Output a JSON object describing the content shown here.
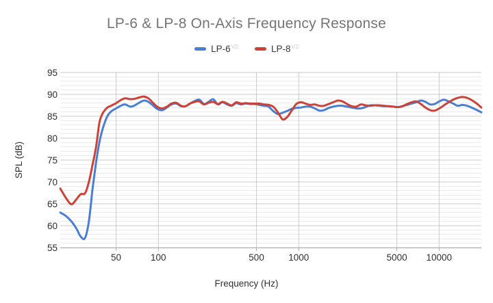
{
  "chart_data": {
    "type": "line",
    "title": "LP-6 & LP-8 On-Axis Frequency Response",
    "xlabel": "Frequency (Hz)",
    "ylabel": "SPL (dB)",
    "x_scale": "log",
    "xlim": [
      20,
      20000
    ],
    "ylim": [
      55,
      95
    ],
    "y_major_ticks": [
      55,
      60,
      65,
      70,
      75,
      80,
      85,
      90,
      95
    ],
    "y_minor_step": 1,
    "x_gridlines": [
      50,
      100,
      500,
      1000,
      5000,
      10000
    ],
    "x_tick_labels": [
      "50",
      "100",
      "500",
      "1000",
      "5000",
      "10000"
    ],
    "grid": "major-vertical, major+minor-horizontal",
    "legend_position": "top-center",
    "colors": {
      "title_text": "#757575",
      "axis_text": "#2e2e2e",
      "major_grid": "#c9c9c9",
      "minor_grid": "#e9e9e9",
      "axis_line": "#b0b0b0",
      "superscript_text": "#c9cdd8"
    },
    "frequencies": [
      20,
      22,
      24,
      26,
      28,
      30,
      32,
      34,
      36,
      38,
      40,
      43,
      46,
      50,
      54,
      58,
      63,
      68,
      73,
      79,
      85,
      92,
      99,
      107,
      115,
      124,
      134,
      145,
      156,
      168,
      182,
      196,
      211,
      228,
      246,
      265,
      286,
      309,
      333,
      359,
      387,
      418,
      451,
      486,
      524,
      565,
      610,
      658,
      710,
      766,
      826,
      891,
      961,
      1036,
      1118,
      1206,
      1301,
      1403,
      1513,
      1632,
      1760,
      1899,
      2048,
      2209,
      2383,
      2570,
      2772,
      2990,
      3225,
      3479,
      3752,
      4047,
      4365,
      4708,
      5078,
      5477,
      5907,
      6372,
      6873,
      7413,
      7996,
      8625,
      9303,
      10034,
      10823,
      11674,
      12592,
      13582,
      14650,
      15801,
      17043,
      18383,
      20000
    ],
    "series": [
      {
        "name": "LP-6",
        "superscript": "V2",
        "color": "#4a7ed3",
        "values": [
          63.0,
          62.2,
          61.0,
          59.4,
          57.5,
          57.2,
          61.0,
          68.5,
          74.5,
          79.0,
          82.0,
          84.8,
          86.1,
          86.8,
          87.4,
          87.7,
          87.2,
          87.5,
          88.1,
          88.6,
          88.3,
          87.4,
          86.6,
          86.4,
          87.0,
          87.7,
          87.9,
          87.3,
          87.3,
          87.9,
          88.5,
          88.8,
          87.8,
          88.3,
          88.9,
          87.7,
          88.2,
          87.7,
          87.4,
          88.0,
          87.7,
          87.9,
          87.8,
          87.8,
          87.6,
          87.4,
          87.2,
          86.2,
          85.5,
          85.8,
          86.2,
          86.7,
          86.9,
          87.0,
          87.2,
          87.2,
          86.8,
          86.3,
          86.4,
          86.9,
          87.2,
          87.4,
          87.4,
          87.2,
          87.0,
          86.8,
          86.8,
          87.1,
          87.5,
          87.5,
          87.4,
          87.3,
          87.3,
          87.2,
          87.1,
          87.3,
          87.6,
          87.9,
          88.2,
          88.6,
          88.3,
          87.7,
          87.8,
          88.4,
          88.8,
          88.4,
          87.9,
          87.4,
          87.6,
          87.4,
          87.0,
          86.5,
          85.9
        ]
      },
      {
        "name": "LP-8",
        "superscript": "V2",
        "color": "#cc4237",
        "values": [
          68.5,
          66.3,
          64.9,
          66.0,
          67.2,
          67.4,
          70.0,
          74.0,
          78.0,
          83.5,
          85.6,
          86.9,
          87.4,
          88.0,
          88.7,
          89.1,
          88.9,
          89.0,
          89.3,
          89.5,
          89.1,
          88.0,
          87.1,
          86.8,
          87.2,
          87.9,
          88.1,
          87.4,
          87.3,
          87.9,
          88.3,
          88.4,
          87.7,
          88.1,
          88.3,
          87.8,
          88.3,
          87.9,
          87.5,
          88.2,
          87.9,
          88.0,
          87.9,
          87.9,
          87.9,
          87.7,
          87.6,
          87.2,
          85.9,
          84.3,
          84.8,
          86.3,
          87.8,
          88.2,
          87.9,
          87.6,
          87.7,
          87.4,
          87.4,
          87.8,
          88.2,
          88.6,
          88.4,
          87.8,
          87.3,
          87.2,
          87.7,
          87.5,
          87.4,
          87.5,
          87.5,
          87.4,
          87.3,
          87.2,
          87.1,
          87.3,
          87.8,
          88.2,
          88.4,
          87.8,
          87.0,
          86.4,
          86.3,
          86.8,
          87.5,
          88.2,
          88.8,
          89.2,
          89.4,
          89.2,
          88.7,
          88.0,
          87.0
        ]
      }
    ]
  }
}
